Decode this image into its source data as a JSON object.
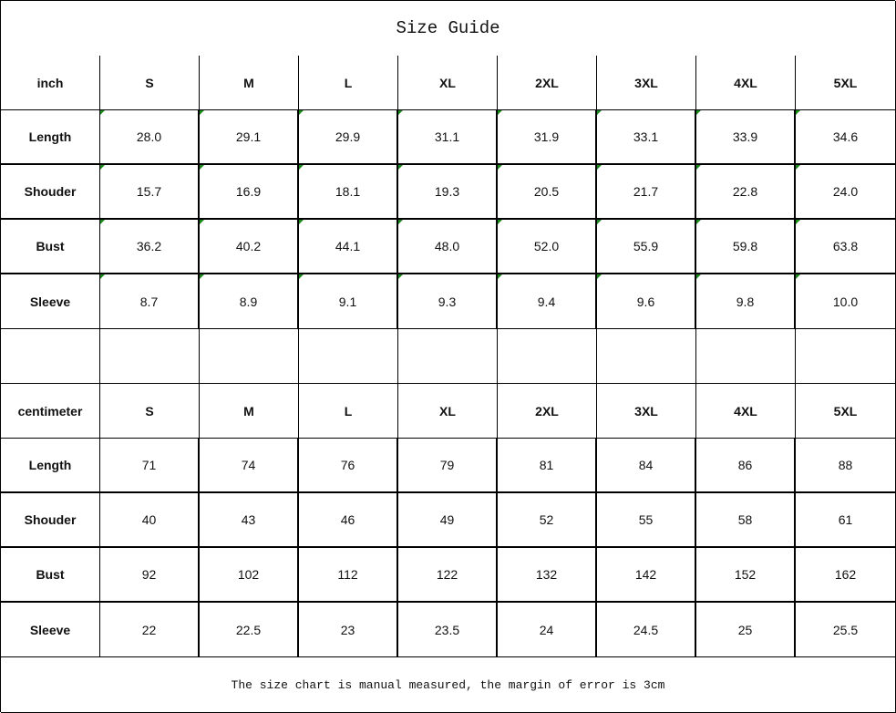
{
  "title": "Size Guide",
  "inch": {
    "header": [
      "inch",
      "S",
      "M",
      "L",
      "XL",
      "2XL",
      "3XL",
      "4XL",
      "5XL"
    ],
    "rows": [
      [
        "Length",
        "28.0",
        "29.1",
        "29.9",
        "31.1",
        "31.9",
        "33.1",
        "33.9",
        "34.6"
      ],
      [
        "Shouder",
        "15.7",
        "16.9",
        "18.1",
        "19.3",
        "20.5",
        "21.7",
        "22.8",
        "24.0"
      ],
      [
        "Bust",
        "36.2",
        "40.2",
        "44.1",
        "48.0",
        "52.0",
        "55.9",
        "59.8",
        "63.8"
      ],
      [
        "Sleeve",
        "8.7",
        "8.9",
        "9.1",
        "9.3",
        "9.4",
        "9.6",
        "9.8",
        "10.0"
      ]
    ]
  },
  "centimeter": {
    "header": [
      "centimeter",
      "S",
      "M",
      "L",
      "XL",
      "2XL",
      "3XL",
      "4XL",
      "5XL"
    ],
    "rows": [
      [
        "Length",
        "71",
        "74",
        "76",
        "79",
        "81",
        "84",
        "86",
        "88"
      ],
      [
        "Shouder",
        "40",
        "43",
        "46",
        "49",
        "52",
        "55",
        "58",
        "61"
      ],
      [
        "Bust",
        "92",
        "102",
        "112",
        "122",
        "132",
        "142",
        "152",
        "162"
      ],
      [
        "Sleeve",
        "22",
        "22.5",
        "23",
        "23.5",
        "24",
        "24.5",
        "25",
        "25.5"
      ]
    ]
  },
  "footer": "The size chart is manual measured, the margin of error is 3cm",
  "colors": {
    "text_marker": "#1a8a1a"
  }
}
